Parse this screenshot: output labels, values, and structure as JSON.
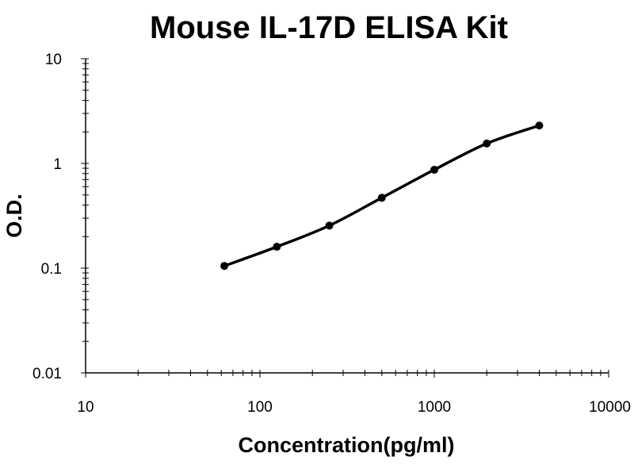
{
  "chart_data": {
    "type": "line",
    "title": "Mouse IL-17D ELISA Kit",
    "xlabel": "Concentration(pg/ml)",
    "ylabel": "O.D.",
    "x_scale": "log",
    "y_scale": "log",
    "xlim": [
      10,
      10000
    ],
    "ylim": [
      0.01,
      10
    ],
    "x_ticks": [
      "10",
      "100",
      "1000",
      "10000"
    ],
    "y_ticks": [
      "0.01",
      "0.1",
      "1",
      "10"
    ],
    "grid": false,
    "legend": "none",
    "series": [
      {
        "x": [
          62.5,
          125,
          250,
          500,
          1000,
          2000,
          4000
        ],
        "y": [
          0.105,
          0.16,
          0.255,
          0.47,
          0.87,
          1.55,
          2.3
        ],
        "color": "#000000",
        "marker": "circle",
        "smooth": true
      }
    ]
  }
}
